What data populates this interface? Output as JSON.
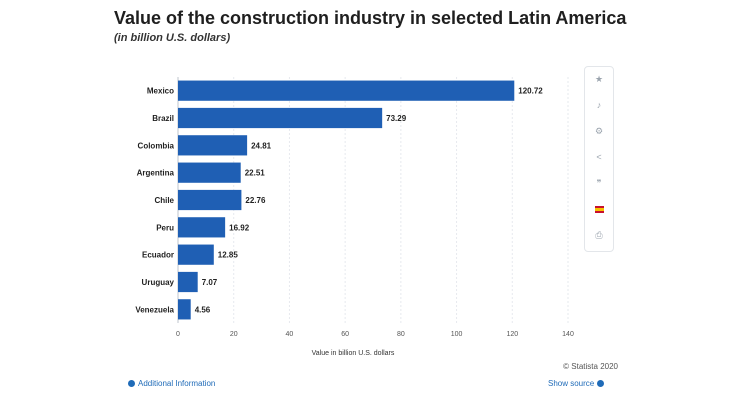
{
  "header": {
    "title": "Value of the construction industry in selected Latin America",
    "subtitle": "(in billion U.S. dollars)"
  },
  "sidebar": {
    "tools": [
      {
        "icon": "star-icon"
      },
      {
        "icon": "bell-icon"
      },
      {
        "icon": "gear-icon"
      },
      {
        "icon": "share-icon"
      },
      {
        "icon": "quote-icon"
      },
      {
        "icon": "spain-flag-icon"
      },
      {
        "icon": "print-icon"
      }
    ]
  },
  "footer": {
    "copyright": "© Statista 2020",
    "additional_info": "Additional Information",
    "show_source": "Show source"
  },
  "chart_data": {
    "type": "bar",
    "orientation": "horizontal",
    "title": "Value of the construction industry in selected Latin America",
    "subtitle": "(in billion U.S. dollars)",
    "xlabel": "Value in billion U.S. dollars",
    "ylabel": "",
    "xlim": [
      0,
      140
    ],
    "xticks": [
      0,
      20,
      40,
      60,
      80,
      100,
      120,
      140
    ],
    "grid": true,
    "bar_color": "#1f5fb4",
    "categories": [
      "Mexico",
      "Brazil",
      "Colombia",
      "Argentina",
      "Chile",
      "Peru",
      "Ecuador",
      "Uruguay",
      "Venezuela"
    ],
    "values": [
      120.72,
      73.29,
      24.81,
      22.51,
      22.76,
      16.92,
      12.85,
      7.07,
      4.56
    ],
    "labels": [
      "120.72",
      "73.29",
      "24.81",
      "22.51",
      "22.76",
      "16.92",
      "12.85",
      "7.07",
      "4.56"
    ]
  }
}
